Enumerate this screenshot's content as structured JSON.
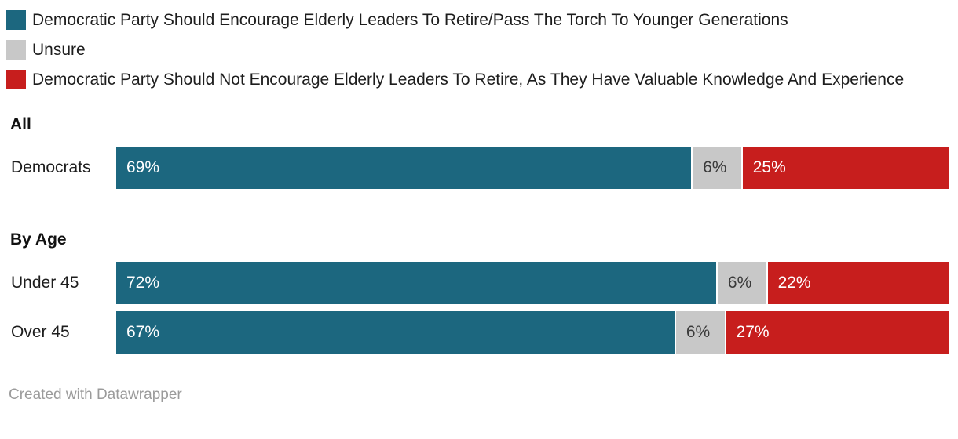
{
  "chart_data": {
    "type": "bar",
    "variant": "stacked-horizontal",
    "unit": "%",
    "xlim": [
      0,
      100
    ],
    "legend_position": "top",
    "grid": false,
    "series": [
      {
        "name": "Democratic Party Should Encourage Elderly Leaders To Retire/Pass The Torch To Younger Generations",
        "color": "#1c677f",
        "label_color": "#ffffff",
        "values": [
          69,
          72,
          67
        ]
      },
      {
        "name": "Unsure",
        "color": "#c8c8c8",
        "label_color": "#3a3a3a",
        "values": [
          6,
          6,
          6
        ]
      },
      {
        "name": "Democratic Party Should Not Encourage Elderly Leaders To Retire, As They Have Valuable Knowledge And Experience",
        "color": "#c71e1d",
        "label_color": "#ffffff",
        "values": [
          25,
          22,
          27
        ]
      }
    ],
    "categories": [
      "Democrats",
      "Under 45",
      "Over 45"
    ],
    "groups": [
      {
        "heading": "All",
        "rows": [
          {
            "label": "Democrats",
            "values": [
              69,
              6,
              25
            ]
          }
        ]
      },
      {
        "heading": "By Age",
        "rows": [
          {
            "label": "Under 45",
            "values": [
              72,
              6,
              22
            ]
          },
          {
            "label": "Over 45",
            "values": [
              67,
              6,
              27
            ]
          }
        ]
      }
    ]
  },
  "footer": {
    "credit": "Created with Datawrapper"
  }
}
